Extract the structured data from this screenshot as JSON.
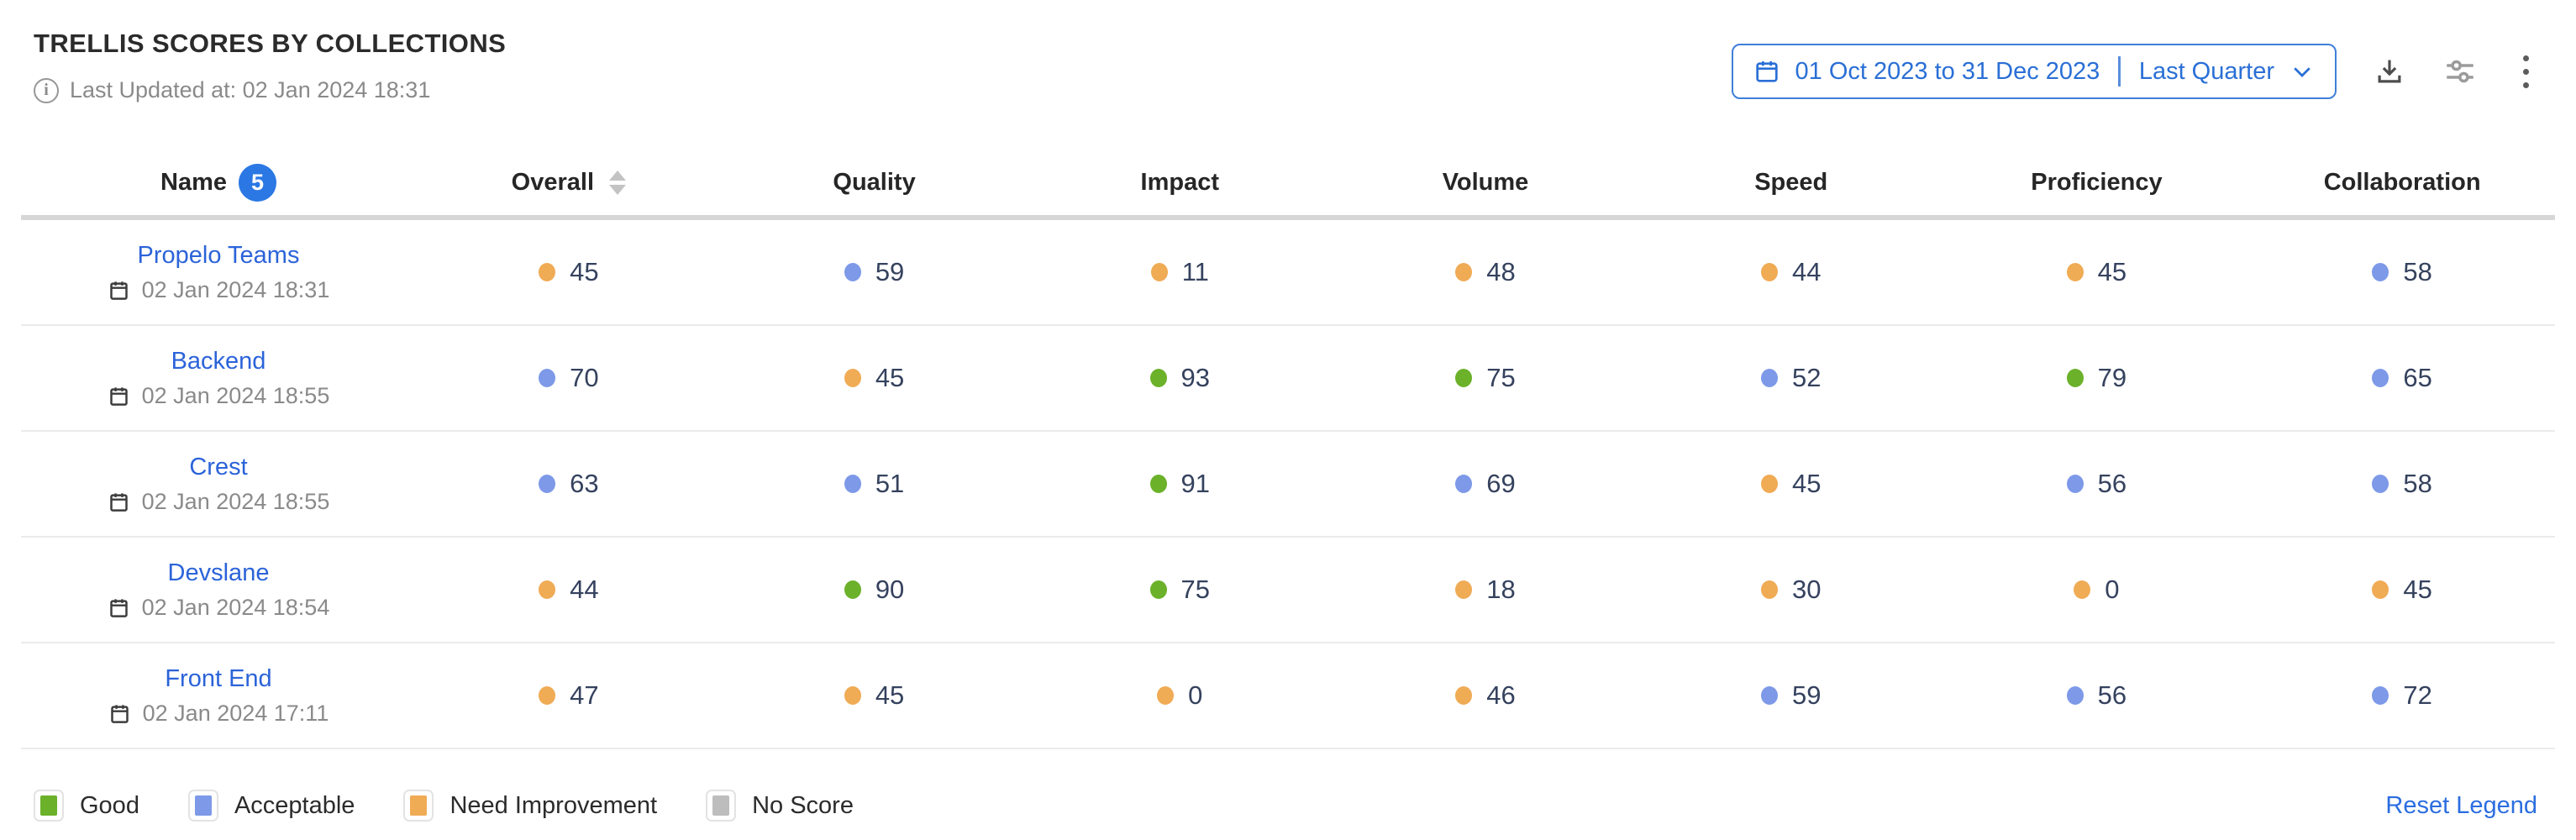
{
  "header": {
    "title": "TRELLIS SCORES BY COLLECTIONS",
    "last_updated": "Last Updated at: 02 Jan 2024 18:31"
  },
  "controls": {
    "date_range": "01 Oct 2023 to 31 Dec 2023",
    "date_preset": "Last Quarter"
  },
  "table": {
    "name_header": "Name",
    "name_count": "5",
    "columns": [
      {
        "label": "Overall",
        "sortable": true
      },
      {
        "label": "Quality",
        "sortable": false
      },
      {
        "label": "Impact",
        "sortable": false
      },
      {
        "label": "Volume",
        "sortable": false
      },
      {
        "label": "Speed",
        "sortable": false
      },
      {
        "label": "Proficiency",
        "sortable": false
      },
      {
        "label": "Collaboration",
        "sortable": false
      }
    ],
    "rows": [
      {
        "name": "Propelo Teams",
        "date": "02 Jan 2024 18:31",
        "scores": [
          {
            "v": 45,
            "c": "orange"
          },
          {
            "v": 59,
            "c": "blue"
          },
          {
            "v": 11,
            "c": "orange"
          },
          {
            "v": 48,
            "c": "orange"
          },
          {
            "v": 44,
            "c": "orange"
          },
          {
            "v": 45,
            "c": "orange"
          },
          {
            "v": 58,
            "c": "blue"
          }
        ]
      },
      {
        "name": "Backend",
        "date": "02 Jan 2024 18:55",
        "scores": [
          {
            "v": 70,
            "c": "blue"
          },
          {
            "v": 45,
            "c": "orange"
          },
          {
            "v": 93,
            "c": "green"
          },
          {
            "v": 75,
            "c": "green"
          },
          {
            "v": 52,
            "c": "blue"
          },
          {
            "v": 79,
            "c": "green"
          },
          {
            "v": 65,
            "c": "blue"
          }
        ]
      },
      {
        "name": "Crest",
        "date": "02 Jan 2024 18:55",
        "scores": [
          {
            "v": 63,
            "c": "blue"
          },
          {
            "v": 51,
            "c": "blue"
          },
          {
            "v": 91,
            "c": "green"
          },
          {
            "v": 69,
            "c": "blue"
          },
          {
            "v": 45,
            "c": "orange"
          },
          {
            "v": 56,
            "c": "blue"
          },
          {
            "v": 58,
            "c": "blue"
          }
        ]
      },
      {
        "name": "Devslane",
        "date": "02 Jan 2024 18:54",
        "scores": [
          {
            "v": 44,
            "c": "orange"
          },
          {
            "v": 90,
            "c": "green"
          },
          {
            "v": 75,
            "c": "green"
          },
          {
            "v": 18,
            "c": "orange"
          },
          {
            "v": 30,
            "c": "orange"
          },
          {
            "v": 0,
            "c": "orange"
          },
          {
            "v": 45,
            "c": "orange"
          }
        ]
      },
      {
        "name": "Front End",
        "date": "02 Jan 2024 17:11",
        "scores": [
          {
            "v": 47,
            "c": "orange"
          },
          {
            "v": 45,
            "c": "orange"
          },
          {
            "v": 0,
            "c": "orange"
          },
          {
            "v": 46,
            "c": "orange"
          },
          {
            "v": 59,
            "c": "blue"
          },
          {
            "v": 56,
            "c": "blue"
          },
          {
            "v": 72,
            "c": "blue"
          }
        ]
      }
    ]
  },
  "legend": {
    "items": [
      {
        "label": "Good",
        "color": "#6bb12a"
      },
      {
        "label": "Acceptable",
        "color": "#7d99e8"
      },
      {
        "label": "Need Improvement",
        "color": "#f0ab55"
      },
      {
        "label": "No Score",
        "color": "#bdbdbd"
      }
    ],
    "reset_label": "Reset Legend"
  },
  "colors": {
    "green": "#6bb12a",
    "blue": "#7d99e8",
    "orange": "#f0ab55",
    "gray": "#bdbdbd",
    "accent_blue": "#2a6fd6"
  }
}
